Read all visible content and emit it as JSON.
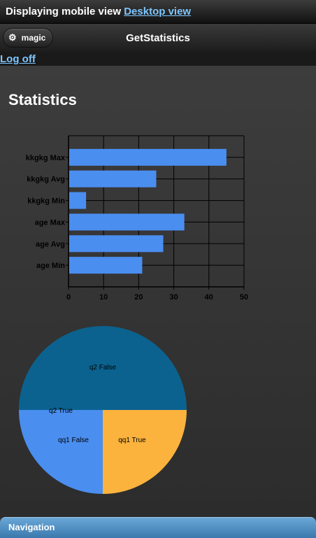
{
  "topbar": {
    "prefix": "Displaying mobile view ",
    "link": "Desktop view"
  },
  "header": {
    "button_label": "magic",
    "button_icon": "gear-icon",
    "title": "GetStatistics"
  },
  "logoff": "Log off",
  "page": {
    "title": "Statistics"
  },
  "colors": {
    "bar": "#4a8ef0",
    "blue_slice": "#4a8ef0",
    "dark_slice": "#0b628f",
    "orange_slice": "#fbb33e",
    "link": "#7fc7ff"
  },
  "chart_data": [
    {
      "type": "bar",
      "orientation": "horizontal",
      "categories": [
        "kkgkg Max",
        "kkgkg Avg",
        "kkgkg Min",
        "age Max",
        "age Avg",
        "age Min"
      ],
      "values": [
        45,
        25,
        5,
        33,
        27,
        21
      ],
      "xlim": [
        0,
        50
      ],
      "xticks": [
        "0",
        "10",
        "20",
        "30",
        "40",
        "50"
      ],
      "grid": true
    },
    {
      "type": "pie",
      "labels": [
        "q2 False",
        "q2 True",
        "qq1 False",
        "qq1 True"
      ],
      "values": [
        50,
        0,
        25,
        25
      ],
      "colors": [
        "#0b628f",
        "#fbb33e",
        "#fbb33e",
        "#4a8ef0"
      ]
    }
  ],
  "footer": {
    "nav_label": "Navigation"
  }
}
